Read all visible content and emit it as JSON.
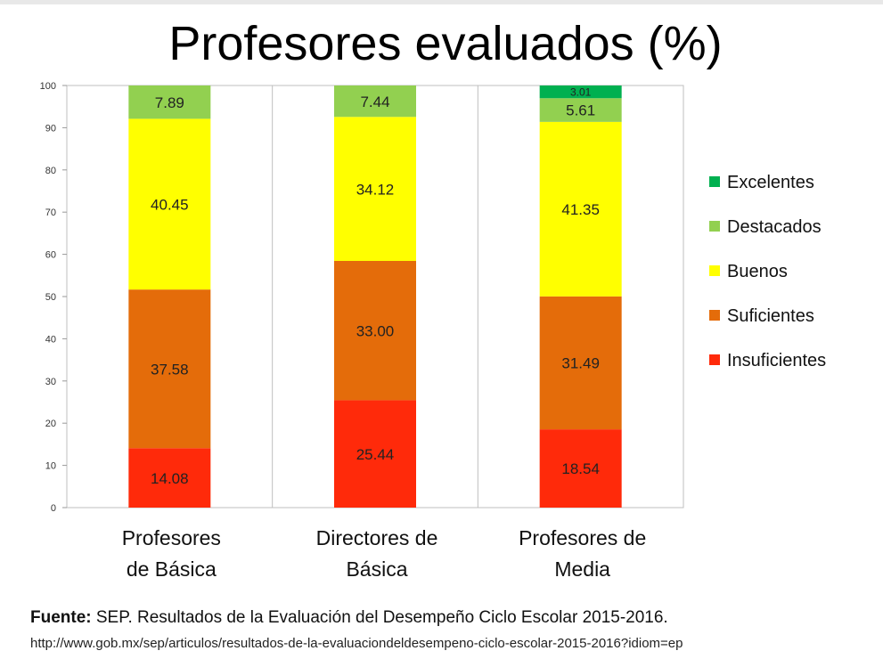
{
  "chart_data": {
    "type": "bar",
    "stacked": true,
    "title": "Profesores evaluados (%)",
    "categories": [
      "Profesores de Básica",
      "Directores de Básica",
      "Profesores de Media"
    ],
    "category_lines": [
      [
        "Profesores",
        "de Básica"
      ],
      [
        "Directores de",
        "Básica"
      ],
      [
        "Profesores de",
        "Media"
      ]
    ],
    "series": [
      {
        "name": "Insuficientes",
        "color": "#ff2a0a",
        "values": [
          14.08,
          25.44,
          18.54
        ],
        "labels": [
          "14.08",
          "25.44",
          "18.54"
        ]
      },
      {
        "name": "Suficientes",
        "color": "#e46c0a",
        "values": [
          37.58,
          33.0,
          31.49
        ],
        "labels": [
          "37.58",
          "33.00",
          "31.49"
        ]
      },
      {
        "name": "Buenos",
        "color": "#ffff00",
        "values": [
          40.45,
          34.12,
          41.35
        ],
        "labels": [
          "40.45",
          "34.12",
          "41.35"
        ]
      },
      {
        "name": "Destacados",
        "color": "#92d050",
        "values": [
          7.89,
          7.44,
          5.61
        ],
        "labels": [
          "7.89",
          "7.44",
          "5.61"
        ]
      },
      {
        "name": "Excelentes",
        "color": "#00b050",
        "values": [
          0,
          0,
          3.01
        ],
        "labels": [
          "",
          "",
          "3.01"
        ]
      }
    ],
    "legend_order": [
      "Excelentes",
      "Destacados",
      "Buenos",
      "Suficientes",
      "Insuficientes"
    ],
    "yticks": [
      "0",
      "10",
      "20",
      "30",
      "40",
      "50",
      "60",
      "70",
      "80",
      "90",
      "100"
    ],
    "ylim": [
      0,
      100
    ],
    "xlabel": "",
    "ylabel": "",
    "grid": false,
    "legend_position": "right"
  },
  "source": {
    "label": "Fuente:",
    "text": " SEP. Resultados de la Evaluación del Desempeño Ciclo  Escolar 2015-2016.",
    "url": "http://www.gob.mx/sep/articulos/resultados-de-la-evaluaciondeldesempeno-ciclo-escolar-2015-2016?idiom=ep"
  }
}
